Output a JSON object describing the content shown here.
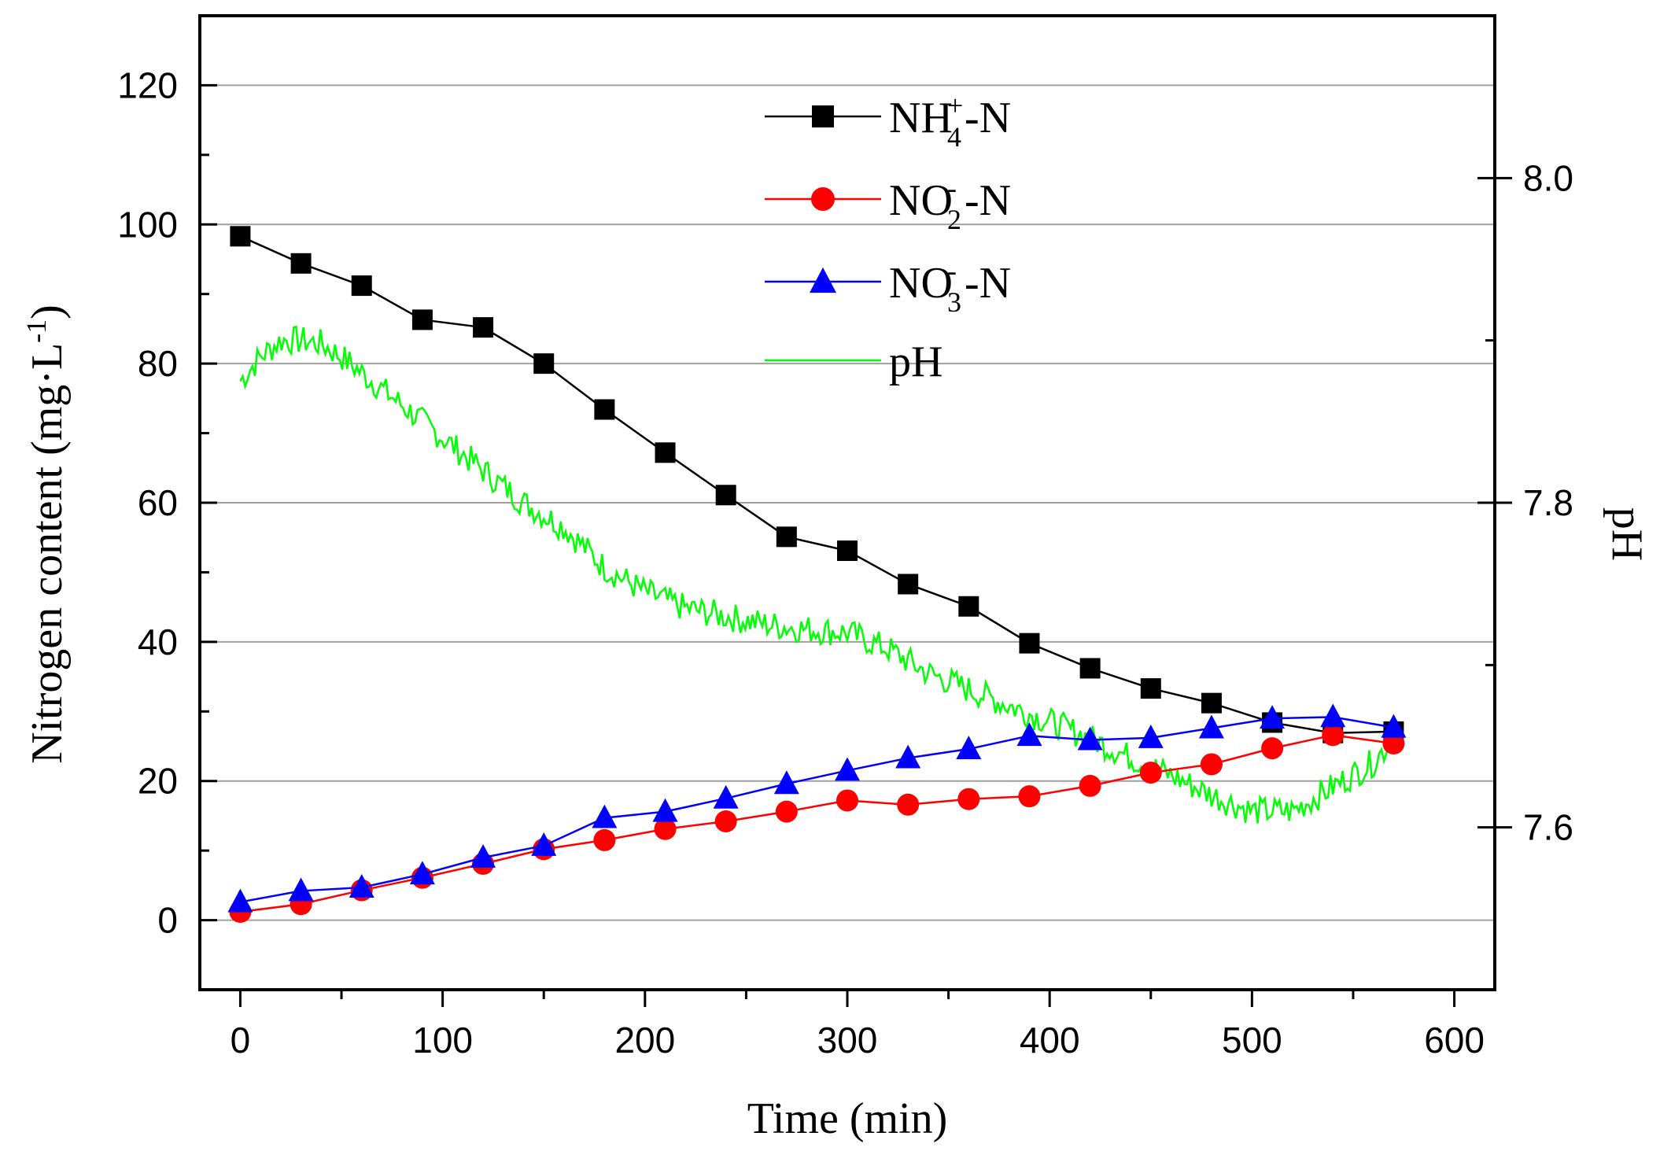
{
  "chart_data": {
    "type": "line",
    "xlabel": "Time (min)",
    "ylabel": "Nitrogen content (mg·L",
    "ylabel_sup": "-1",
    "ylabel_close": ")",
    "y2label": "pH",
    "xlim": [
      -20,
      620
    ],
    "ylim": [
      -10,
      130
    ],
    "y2lim": [
      7.5,
      8.1
    ],
    "xticks": [
      0,
      100,
      200,
      300,
      400,
      500,
      600
    ],
    "yticks": [
      0,
      20,
      40,
      60,
      80,
      100,
      120
    ],
    "y2ticks": [
      7.6,
      7.8,
      8.0
    ],
    "y2tick_labels": [
      "7.6",
      "7.8",
      "8.0"
    ],
    "grid": "horizontal",
    "legend_position": "top-center",
    "x": [
      0,
      30,
      60,
      90,
      120,
      150,
      180,
      210,
      240,
      270,
      300,
      330,
      360,
      390,
      420,
      450,
      480,
      510,
      540,
      570
    ],
    "series": [
      {
        "name": "NH4+-N",
        "label_main": "NH",
        "label_sub": "4",
        "label_sup": "+",
        "label_tail": "-N",
        "color": "#000000",
        "marker": "square",
        "values": [
          98.3,
          94.4,
          91.2,
          86.3,
          85.2,
          80.0,
          73.4,
          67.2,
          61.1,
          55.1,
          53.1,
          48.3,
          45.1,
          39.8,
          36.2,
          33.3,
          31.2,
          28.4,
          26.9,
          27.1
        ]
      },
      {
        "name": "NO2--N",
        "label_main": "NO",
        "label_sub": "2",
        "label_sup": "-",
        "label_tail": "-N",
        "color": "#ff0000",
        "marker": "circle",
        "values": [
          1.2,
          2.3,
          4.3,
          6.1,
          8.1,
          10.2,
          11.5,
          13.1,
          14.2,
          15.6,
          17.2,
          16.6,
          17.4,
          17.8,
          19.3,
          21.2,
          22.4,
          24.7,
          26.6,
          25.4
        ]
      },
      {
        "name": "NO3--N",
        "label_main": "NO",
        "label_sub": "3",
        "label_sup": "-",
        "label_tail": "-N",
        "color": "#0000ff",
        "marker": "triangle",
        "values": [
          2.6,
          4.2,
          4.7,
          6.6,
          9.0,
          10.7,
          14.7,
          15.6,
          17.5,
          19.6,
          21.5,
          23.3,
          24.6,
          26.5,
          25.9,
          26.2,
          27.6,
          29.0,
          29.2,
          27.7
        ]
      },
      {
        "name": "pH",
        "label_main": "pH",
        "color": "#00ff00",
        "marker": "none",
        "axis": "right",
        "points": [
          [
            0,
            7.875
          ],
          [
            10,
            7.89
          ],
          [
            20,
            7.9
          ],
          [
            30,
            7.9
          ],
          [
            40,
            7.898
          ],
          [
            50,
            7.89
          ],
          [
            60,
            7.88
          ],
          [
            80,
            7.86
          ],
          [
            100,
            7.84
          ],
          [
            120,
            7.82
          ],
          [
            140,
            7.8
          ],
          [
            160,
            7.785
          ],
          [
            180,
            7.76
          ],
          [
            200,
            7.745
          ],
          [
            220,
            7.735
          ],
          [
            240,
            7.73
          ],
          [
            260,
            7.725
          ],
          [
            280,
            7.722
          ],
          [
            300,
            7.72
          ],
          [
            320,
            7.71
          ],
          [
            340,
            7.695
          ],
          [
            360,
            7.685
          ],
          [
            380,
            7.675
          ],
          [
            400,
            7.665
          ],
          [
            420,
            7.655
          ],
          [
            440,
            7.643
          ],
          [
            460,
            7.632
          ],
          [
            480,
            7.62
          ],
          [
            500,
            7.61
          ],
          [
            520,
            7.61
          ],
          [
            540,
            7.625
          ],
          [
            560,
            7.64
          ],
          [
            570,
            7.655
          ]
        ]
      }
    ]
  }
}
